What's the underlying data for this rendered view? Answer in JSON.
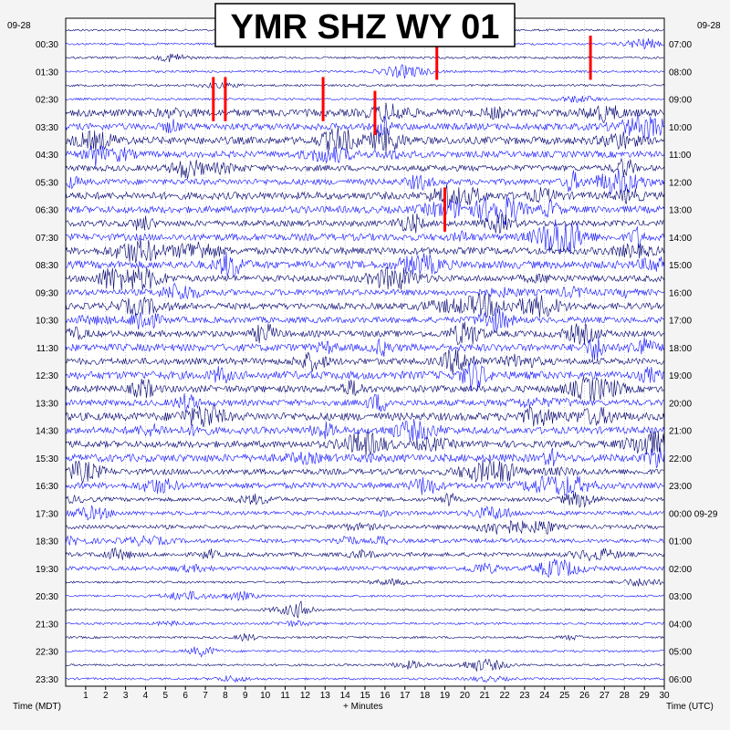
{
  "title": "YMR SHZ WY 01",
  "left_date": "09-28",
  "right_date": "09-28",
  "left_axis_title": "Time (MDT)",
  "right_axis_title": "Time (UTC)",
  "bottom_axis_title": "+ Minutes",
  "colors": {
    "trace_dark": "#00006e",
    "trace_blue": "#1414ff",
    "event": "#ff0000",
    "background": "#ffffff",
    "page": "#f4f4f4",
    "grid": "#9a9a9a"
  },
  "chart_data": {
    "type": "line",
    "title": "YMR SHZ WY 01",
    "xlabel": "+ Minutes",
    "xlim": [
      0,
      30
    ],
    "x_ticks": [
      "1",
      "2",
      "3",
      "4",
      "5",
      "6",
      "7",
      "8",
      "9",
      "10",
      "11",
      "12",
      "13",
      "14",
      "15",
      "16",
      "17",
      "18",
      "19",
      "20",
      "21",
      "22",
      "23",
      "24",
      "25",
      "26",
      "27",
      "28",
      "29",
      "30"
    ],
    "rows": 48,
    "minutes_per_row": 30,
    "left_labels": [
      "00:30",
      "01:30",
      "02:30",
      "03:30",
      "04:30",
      "05:30",
      "06:30",
      "07:30",
      "08:30",
      "09:30",
      "10:30",
      "11:30",
      "12:30",
      "13:30",
      "14:30",
      "15:30",
      "16:30",
      "17:30",
      "18:30",
      "19:30",
      "20:30",
      "21:30",
      "22:30",
      "23:30"
    ],
    "right_labels": [
      "07:00",
      "08:00",
      "09:00",
      "10:00",
      "11:00",
      "12:00",
      "13:00",
      "14:00",
      "15:00",
      "16:00",
      "17:00",
      "18:00",
      "19:00",
      "20:00",
      "21:00",
      "22:00",
      "23:00",
      "00:00 09-29",
      "01:00",
      "02:00",
      "03:00",
      "04:00",
      "05:00",
      "06:00"
    ],
    "events": [
      {
        "row": 1,
        "minute": 18.6,
        "rows_span": 3
      },
      {
        "row": 1,
        "minute": 26.3,
        "rows_span": 3
      },
      {
        "row": 4,
        "minute": 7.4,
        "rows_span": 3
      },
      {
        "row": 4,
        "minute": 8.0,
        "rows_span": 3
      },
      {
        "row": 4,
        "minute": 12.9,
        "rows_span": 3
      },
      {
        "row": 5,
        "minute": 15.5,
        "rows_span": 3
      },
      {
        "row": 12,
        "minute": 19.0,
        "rows_span": 3
      }
    ]
  }
}
